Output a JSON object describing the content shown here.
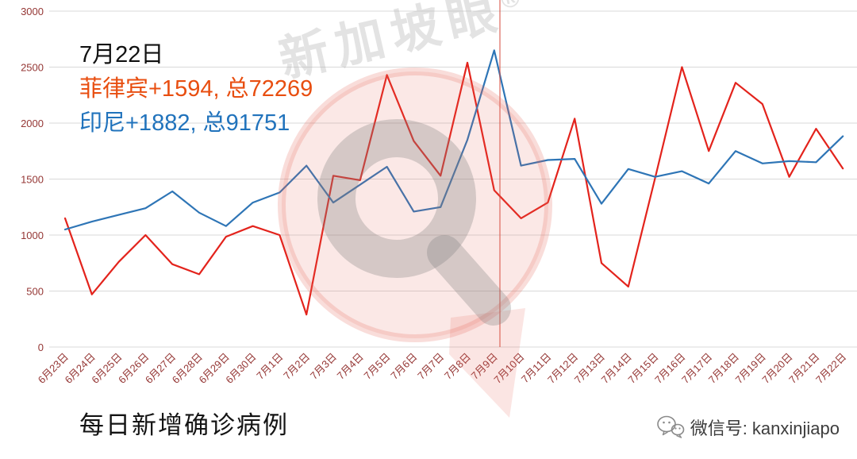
{
  "annotation": {
    "date": "7月22日",
    "philippines": "菲律宾+1594, 总72269",
    "indonesia": "印尼+1882, 总91751"
  },
  "footer": {
    "title": "每日新增确诊病例",
    "wechat": "微信号: kanxinjiapo"
  },
  "watermark": {
    "text": "新加坡眼",
    "reg": "®"
  },
  "colors": {
    "philippines_line": "#e3231c",
    "indonesia_line": "#2e75b6",
    "annotation_philippines": "#e84e10",
    "annotation_indonesia": "#2173bc",
    "axis_label": "#953735",
    "gridline": "#d9d9d9",
    "watermark_pink": "rgba(229,99,88,0.16)",
    "watermark_gray": "rgba(125,125,125,0.30)"
  },
  "chart_data": {
    "type": "line",
    "title": "每日新增确诊病例",
    "xlabel": "",
    "ylabel": "",
    "ylim": [
      0,
      3000
    ],
    "yticks": [
      0,
      500,
      1000,
      1500,
      2000,
      2500,
      3000
    ],
    "grid": true,
    "legend_position": "none",
    "categories": [
      "6月23日",
      "6月24日",
      "6月25日",
      "6月26日",
      "6月27日",
      "6月28日",
      "6月29日",
      "6月30日",
      "7月1日",
      "7月2日",
      "7月3日",
      "7月4日",
      "7月5日",
      "7月6日",
      "7月7日",
      "7月8日",
      "7月9日",
      "7月10日",
      "7月11日",
      "7月12日",
      "7月13日",
      "7月14日",
      "7月15日",
      "7月16日",
      "7月17日",
      "7月18日",
      "7月19日",
      "7月20日",
      "7月21日",
      "7月22日"
    ],
    "series": [
      {
        "id": "philippines",
        "name": "菲律宾",
        "color": "#e3231c",
        "new_cases_today": 1594,
        "total_cases": 72269,
        "values": [
          1150,
          470,
          760,
          1000,
          740,
          650,
          985,
          1080,
          1000,
          290,
          1530,
          1490,
          2430,
          1840,
          1530,
          2540,
          1400,
          1150,
          1290,
          2040,
          750,
          540,
          1510,
          2500,
          1750,
          2360,
          2170,
          1520,
          1950,
          1594
        ]
      },
      {
        "id": "indonesia",
        "name": "印尼",
        "color": "#2e75b6",
        "new_cases_today": 1882,
        "total_cases": 91751,
        "values": [
          1050,
          1120,
          1180,
          1240,
          1390,
          1200,
          1080,
          1290,
          1380,
          1620,
          1290,
          1450,
          1610,
          1210,
          1250,
          1850,
          2650,
          1620,
          1670,
          1680,
          1280,
          1590,
          1520,
          1570,
          1460,
          1750,
          1640,
          1660,
          1650,
          1882
        ]
      }
    ]
  }
}
